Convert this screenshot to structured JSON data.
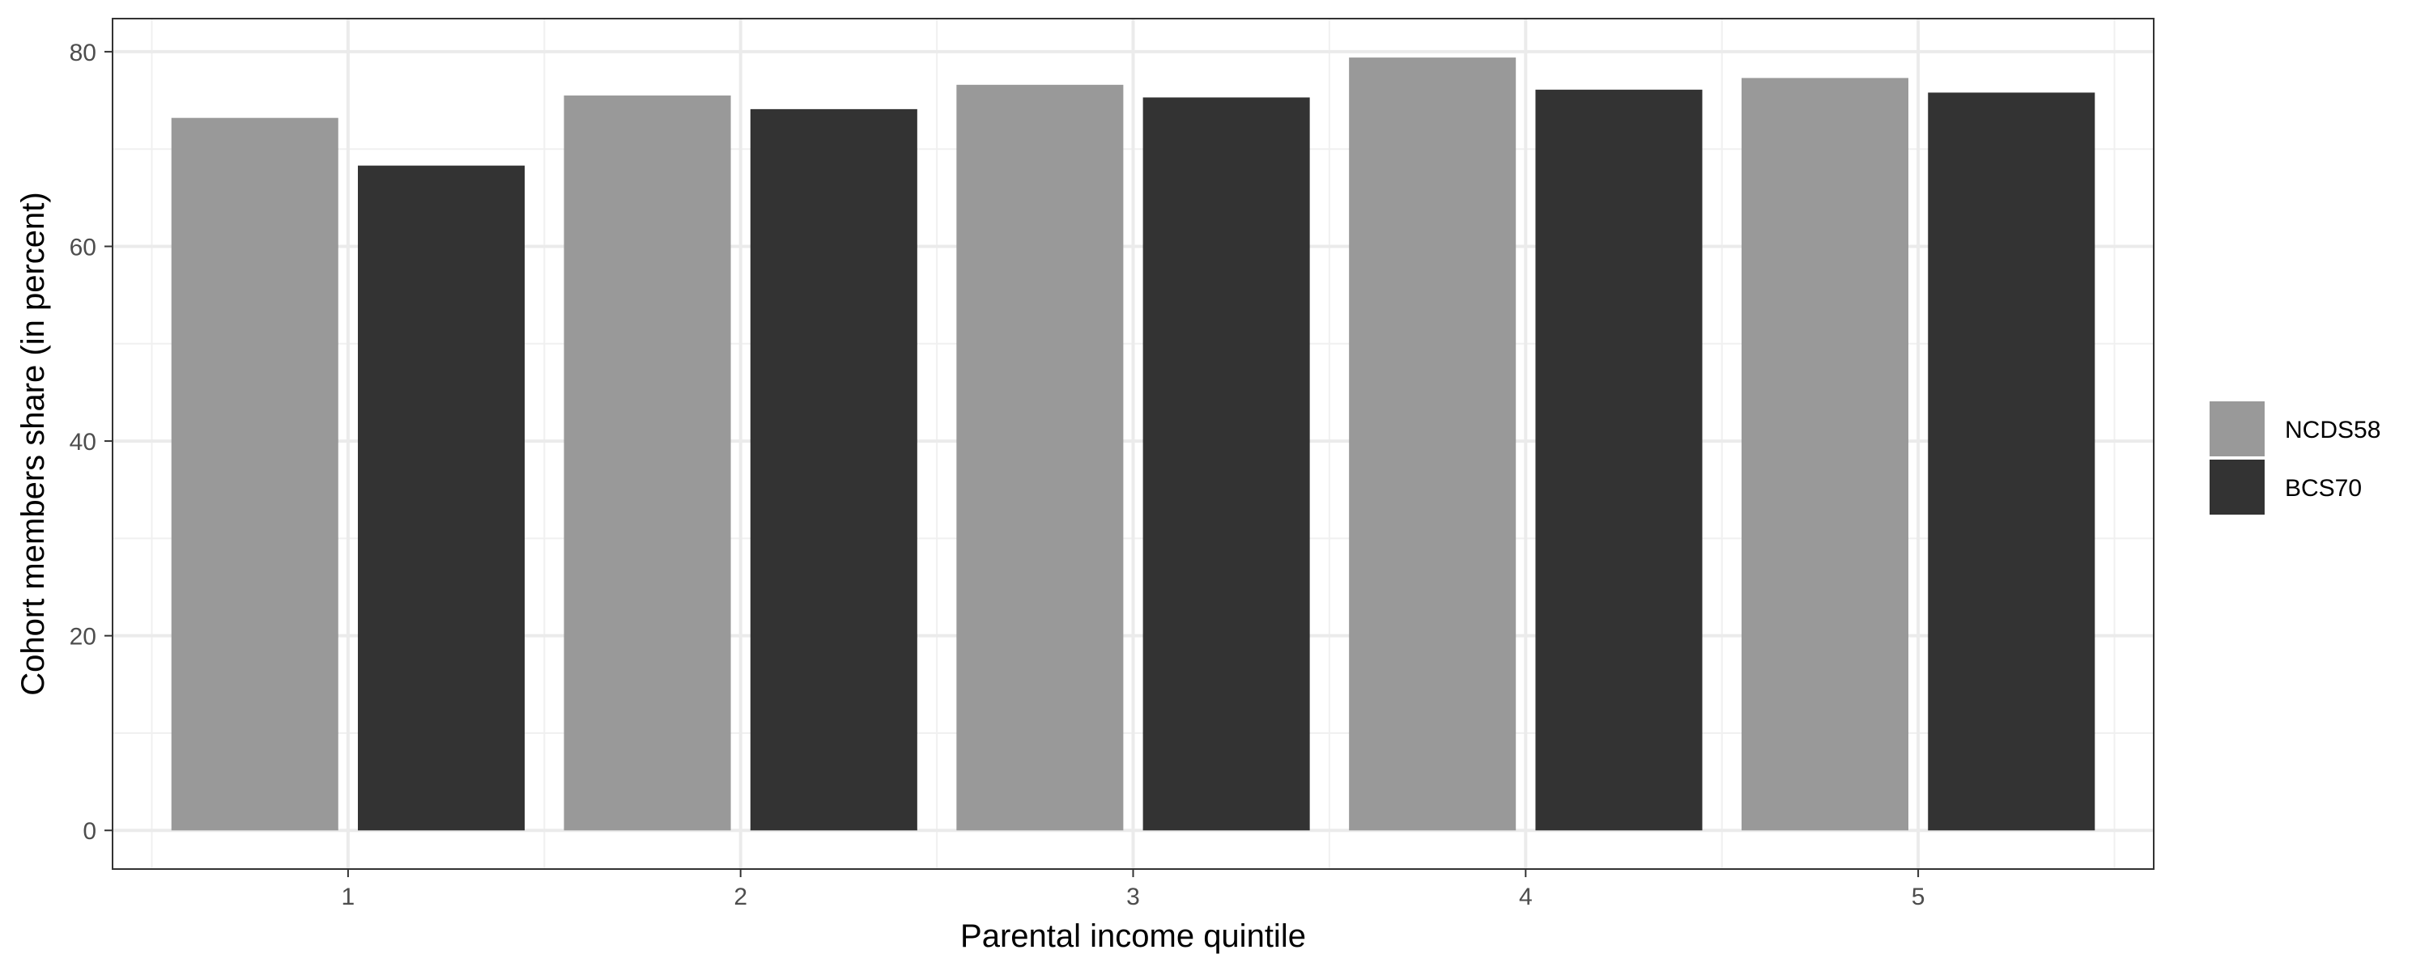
{
  "chart_data": {
    "type": "bar",
    "title": "",
    "xlabel": "Parental income quintile",
    "ylabel": "Cohort members share (in percent)",
    "categories": [
      "1",
      "2",
      "3",
      "4",
      "5"
    ],
    "series": [
      {
        "name": "NCDS58",
        "color": "#999999",
        "values": [
          73.2,
          75.5,
          76.6,
          79.4,
          77.3
        ]
      },
      {
        "name": "BCS70",
        "color": "#333333",
        "values": [
          68.3,
          74.1,
          75.3,
          76.1,
          75.8
        ]
      }
    ],
    "ylim": [
      -3.97,
      83.4
    ],
    "yticks": [
      0,
      20,
      40,
      60,
      80
    ],
    "ytick_labels": [
      "0",
      "20",
      "40",
      "60",
      "80"
    ],
    "grid": true,
    "legend_position": "right"
  }
}
